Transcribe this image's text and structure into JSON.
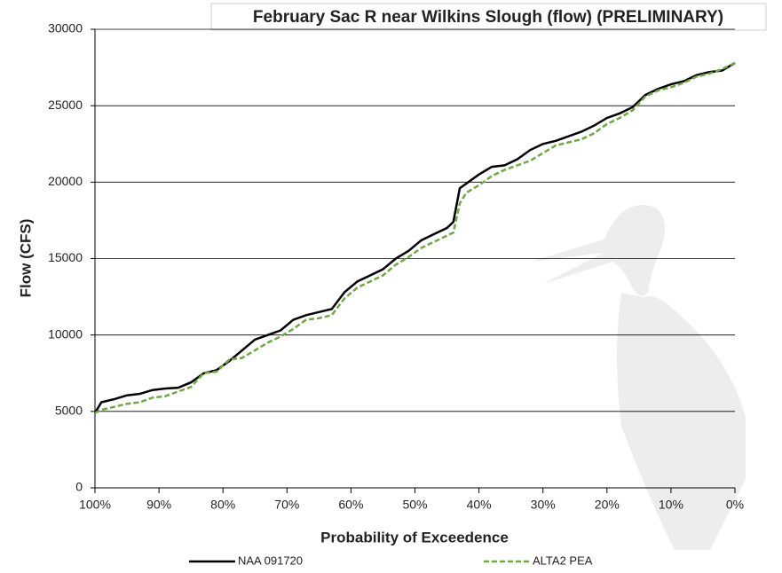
{
  "chart_data": {
    "type": "line",
    "title": "February Sac R near Wilkins Slough (flow) (PRELIMINARY)",
    "x_label": "Probability of Exceedence",
    "y_label": "Flow (CFS)",
    "x": [
      100,
      99,
      97,
      95,
      93,
      91,
      89,
      87,
      85,
      83,
      81,
      79,
      77,
      75,
      73,
      71,
      69,
      67,
      65,
      63,
      61,
      59,
      57,
      55,
      53,
      51,
      49,
      47,
      45,
      44,
      43,
      42,
      40,
      38,
      36,
      34,
      32,
      30,
      28,
      26,
      24,
      22,
      20,
      18,
      16,
      14,
      12,
      10,
      8,
      6,
      4,
      2,
      0
    ],
    "series": [
      {
        "name": "NAA 091720",
        "color": "#000000",
        "dash": false,
        "values": [
          4900,
          5600,
          5800,
          6050,
          6150,
          6400,
          6500,
          6550,
          6900,
          7500,
          7700,
          8300,
          9000,
          9700,
          10000,
          10300,
          11000,
          11300,
          11500,
          11700,
          12800,
          13500,
          13900,
          14300,
          15000,
          15500,
          16200,
          16600,
          17000,
          17400,
          19600,
          19900,
          20500,
          21000,
          21100,
          21500,
          22100,
          22500,
          22700,
          23000,
          23300,
          23700,
          24200,
          24500,
          24900,
          25700,
          26100,
          26400,
          26600,
          27000,
          27200,
          27300,
          27800
        ]
      },
      {
        "name": "ALTA2 PEA",
        "color": "#70a845",
        "dash": true,
        "values": [
          4900,
          5100,
          5300,
          5500,
          5600,
          5900,
          6000,
          6300,
          6600,
          7500,
          7600,
          8400,
          8500,
          9000,
          9500,
          9900,
          10400,
          11000,
          11100,
          11300,
          12400,
          13100,
          13500,
          13900,
          14600,
          15100,
          15700,
          16100,
          16500,
          16700,
          18600,
          19300,
          19800,
          20400,
          20800,
          21100,
          21400,
          21900,
          22400,
          22600,
          22800,
          23200,
          23800,
          24200,
          24700,
          25600,
          26000,
          26200,
          26500,
          26900,
          27100,
          27400,
          27800
        ]
      }
    ],
    "xlim": [
      100,
      0
    ],
    "xticks": [
      {
        "value": 100,
        "label": "100%"
      },
      {
        "value": 90,
        "label": "90%"
      },
      {
        "value": 80,
        "label": "80%"
      },
      {
        "value": 70,
        "label": "70%"
      },
      {
        "value": 60,
        "label": "60%"
      },
      {
        "value": 50,
        "label": "50%"
      },
      {
        "value": 40,
        "label": "40%"
      },
      {
        "value": 30,
        "label": "30%"
      },
      {
        "value": 20,
        "label": "20%"
      },
      {
        "value": 10,
        "label": "10%"
      },
      {
        "value": 0,
        "label": "0%"
      }
    ],
    "ylim": [
      0,
      30000
    ],
    "yticks": [
      0,
      5000,
      10000,
      15000,
      20000,
      25000,
      30000
    ],
    "grid": true,
    "legend": "bottom"
  }
}
